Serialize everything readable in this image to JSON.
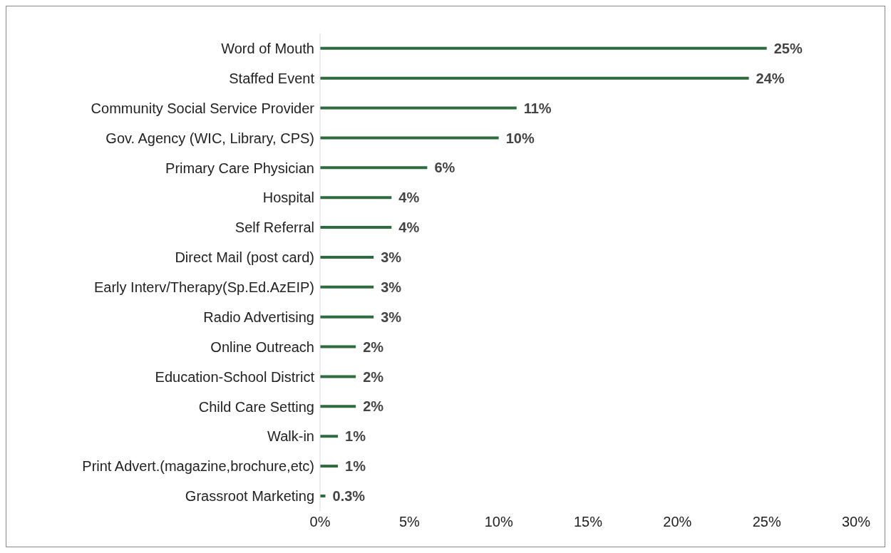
{
  "chart_data": {
    "type": "bar",
    "orientation": "horizontal",
    "categories": [
      "Word of Mouth",
      "Staffed Event",
      "Community Social Service Provider",
      "Gov. Agency (WIC, Library, CPS)",
      "Primary Care Physician",
      "Hospital",
      "Self Referral",
      "Direct Mail (post card)",
      "Early Interv/Therapy(Sp.Ed.AzEIP)",
      "Radio Advertising",
      "Online Outreach",
      "Education-School District",
      "Child Care Setting",
      "Walk-in",
      "Print Advert.(magazine,brochure,etc)",
      "Grassroot Marketing"
    ],
    "values": [
      25,
      24,
      11,
      10,
      6,
      4,
      4,
      3,
      3,
      3,
      2,
      2,
      2,
      1,
      1,
      0.3
    ],
    "value_labels": [
      "25%",
      "24%",
      "11%",
      "10%",
      "6%",
      "4%",
      "4%",
      "3%",
      "3%",
      "3%",
      "2%",
      "2%",
      "2%",
      "1%",
      "1%",
      "0.3%"
    ],
    "color": "#2e6b3e",
    "xlim": [
      0,
      30
    ],
    "xticks": [
      {
        "value": 0,
        "label": "0%"
      },
      {
        "value": 5,
        "label": "5%"
      },
      {
        "value": 10,
        "label": "10%"
      },
      {
        "value": 15,
        "label": "15%"
      },
      {
        "value": 20,
        "label": "20%"
      },
      {
        "value": 25,
        "label": "25%"
      },
      {
        "value": 30,
        "label": "30%"
      }
    ],
    "grid": false,
    "legend": false
  }
}
